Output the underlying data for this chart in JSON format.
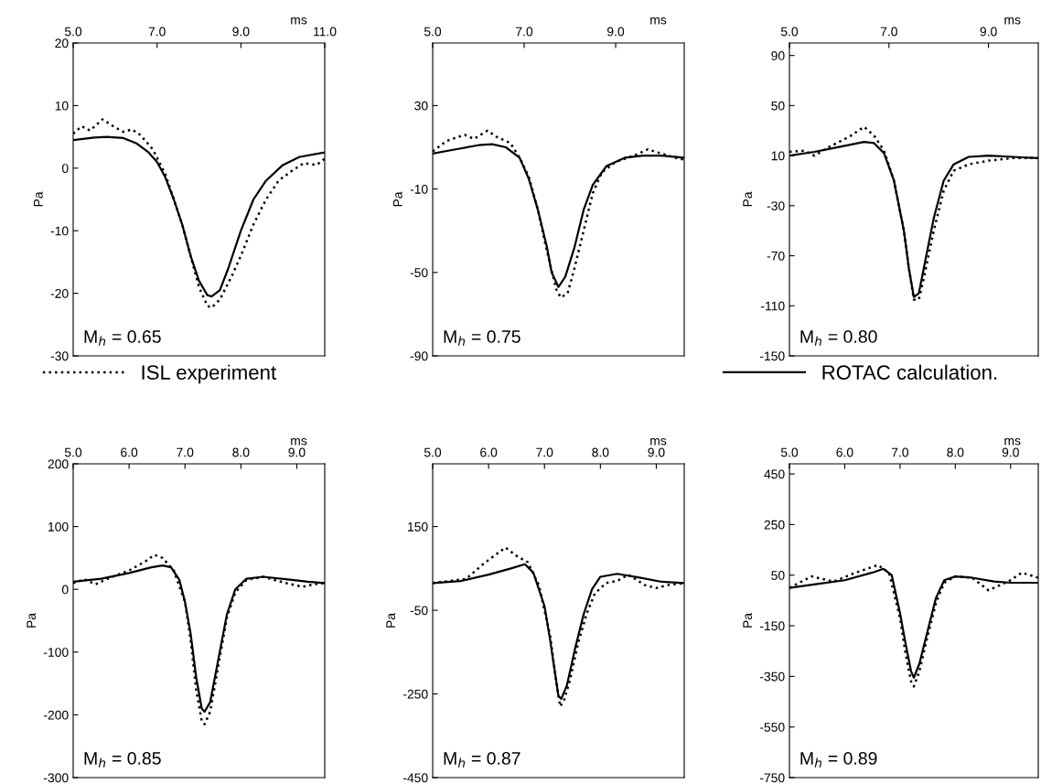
{
  "chart_data": [
    {
      "type": "line",
      "xlabel": "ms",
      "ylabel": "Pa",
      "xlim": [
        5,
        11
      ],
      "xticks": [
        {
          "value": 5,
          "label": "5.0"
        },
        {
          "value": 7,
          "label": "7.0"
        },
        {
          "value": 9,
          "label": "9.0"
        },
        {
          "value": 11,
          "label": "11.0"
        }
      ],
      "ylim": [
        -30,
        20
      ],
      "yticks": [
        -30,
        -20,
        -10,
        0,
        10,
        20
      ],
      "legend": "bottom",
      "annotations": [
        "M$_{h}$ = 0.65"
      ],
      "series": [
        {
          "name": "ISL experiment",
          "color": "#000000",
          "line_style": "dotted",
          "x": [
            5.0,
            5.2,
            5.4,
            5.7,
            6.0,
            6.2,
            6.4,
            6.6,
            6.9,
            7.2,
            7.4,
            7.6,
            7.8,
            8.0,
            8.2,
            8.3,
            8.5,
            8.8,
            9.0,
            9.3,
            9.6,
            9.9,
            10.2,
            10.5,
            10.8,
            11.0
          ],
          "values": [
            5.5,
            6.7,
            6,
            7.8,
            6.5,
            5.8,
            6.2,
            5.3,
            3,
            -1,
            -5,
            -9,
            -14,
            -19,
            -22,
            -22.3,
            -21,
            -17,
            -14,
            -9,
            -5,
            -2,
            -0.5,
            0.8,
            0.5,
            1.5
          ]
        },
        {
          "name": "ROTAC calculation.",
          "color": "#000000",
          "line_style": "solid",
          "x": [
            5.0,
            5.5,
            5.8,
            6.2,
            6.5,
            6.8,
            7.0,
            7.2,
            7.4,
            7.6,
            7.8,
            8.0,
            8.2,
            8.3,
            8.5,
            8.7,
            9.0,
            9.3,
            9.6,
            10.0,
            10.4,
            11.0
          ],
          "values": [
            4.5,
            4.9,
            5,
            4.8,
            4,
            2.5,
            1,
            -1.5,
            -5,
            -9,
            -14,
            -18,
            -20.3,
            -20.5,
            -19.5,
            -16,
            -10,
            -5,
            -2,
            0.5,
            1.8,
            2.5
          ]
        }
      ]
    },
    {
      "type": "line",
      "xlabel": "ms",
      "ylabel": "Pa",
      "xlim": [
        5,
        10.5
      ],
      "xticks": [
        {
          "value": 5,
          "label": "5.0"
        },
        {
          "value": 7,
          "label": "7.0"
        },
        {
          "value": 9,
          "label": "9.0"
        }
      ],
      "ylim": [
        -90,
        60
      ],
      "yticks": [
        -90,
        -50,
        -10,
        30
      ],
      "annotations": [
        "M$_{h}$ = 0.75"
      ],
      "series": [
        {
          "name": "ISL experiment",
          "color": "#000000",
          "line_style": "dotted",
          "x": [
            5.0,
            5.3,
            5.7,
            5.9,
            6.2,
            6.4,
            6.7,
            6.9,
            7.1,
            7.3,
            7.5,
            7.7,
            7.8,
            7.95,
            8.1,
            8.3,
            8.5,
            8.7,
            9.0,
            9.4,
            9.7,
            10.0,
            10.3,
            10.5
          ],
          "values": [
            8,
            13,
            16,
            14,
            18,
            15,
            12,
            5,
            -4,
            -20,
            -40,
            -58,
            -62,
            -60,
            -48,
            -30,
            -12,
            -2,
            3,
            6,
            9,
            7,
            5,
            4
          ]
        },
        {
          "name": "ROTAC calculation.",
          "color": "#000000",
          "line_style": "solid",
          "x": [
            5.0,
            5.5,
            6.0,
            6.3,
            6.6,
            6.9,
            7.1,
            7.3,
            7.5,
            7.6,
            7.75,
            7.9,
            8.1,
            8.3,
            8.5,
            8.8,
            9.2,
            9.6,
            10.0,
            10.5
          ],
          "values": [
            7,
            9,
            11,
            11.5,
            10,
            5,
            -5,
            -20,
            -38,
            -50,
            -57,
            -52,
            -38,
            -20,
            -8,
            1,
            5,
            6,
            6,
            5
          ]
        }
      ]
    },
    {
      "type": "line",
      "xlabel": "ms",
      "ylabel": "Pa",
      "xlim": [
        5,
        10
      ],
      "xticks": [
        {
          "value": 5,
          "label": "5.0"
        },
        {
          "value": 7,
          "label": "7.0"
        },
        {
          "value": 9,
          "label": "9.0"
        }
      ],
      "ylim": [
        -150,
        100
      ],
      "yticks": [
        -150,
        -110,
        -70,
        -30,
        10,
        50,
        90
      ],
      "annotations": [
        "M$_{h}$ = 0.80"
      ],
      "series": [
        {
          "name": "ISL experiment",
          "color": "#000000",
          "line_style": "dotted",
          "x": [
            5.0,
            5.3,
            5.5,
            5.8,
            6.2,
            6.5,
            6.7,
            6.9,
            7.1,
            7.3,
            7.4,
            7.5,
            7.6,
            7.7,
            7.9,
            8.1,
            8.3,
            8.6,
            9.0,
            9.5,
            10.0
          ],
          "values": [
            13,
            14,
            10,
            17,
            25,
            33,
            26,
            14,
            -10,
            -50,
            -80,
            -105,
            -105,
            -88,
            -50,
            -18,
            -2,
            3,
            6,
            8,
            8
          ]
        },
        {
          "name": "ROTAC calculation.",
          "color": "#000000",
          "line_style": "solid",
          "x": [
            5.0,
            5.5,
            6.0,
            6.5,
            6.7,
            6.9,
            7.1,
            7.3,
            7.4,
            7.5,
            7.6,
            7.7,
            7.9,
            8.1,
            8.3,
            8.6,
            9.0,
            9.5,
            10.0
          ],
          "values": [
            10,
            13,
            17,
            21,
            20,
            12,
            -10,
            -50,
            -80,
            -103,
            -100,
            -80,
            -40,
            -10,
            3,
            9,
            10,
            9,
            8
          ]
        }
      ]
    },
    {
      "type": "line",
      "xlabel": "ms",
      "ylabel": "Pa",
      "xlim": [
        5,
        9.5
      ],
      "xticks": [
        {
          "value": 5,
          "label": "5.0"
        },
        {
          "value": 6,
          "label": "6.0"
        },
        {
          "value": 7,
          "label": "7.0"
        },
        {
          "value": 8,
          "label": "8.0"
        },
        {
          "value": 9,
          "label": "9.0"
        }
      ],
      "ylim": [
        -300,
        200
      ],
      "yticks": [
        -300,
        -200,
        -100,
        0,
        100,
        200
      ],
      "annotations": [
        "M$_{h}$ = 0.85"
      ],
      "series": [
        {
          "name": "ISL experiment",
          "color": "#000000",
          "line_style": "dotted",
          "x": [
            5.0,
            5.2,
            5.4,
            5.7,
            6.0,
            6.3,
            6.45,
            6.6,
            6.8,
            7.0,
            7.1,
            7.2,
            7.3,
            7.35,
            7.45,
            7.6,
            7.75,
            7.9,
            8.1,
            8.4,
            8.8,
            9.1,
            9.3,
            9.5
          ],
          "values": [
            10,
            16,
            8,
            20,
            30,
            45,
            55,
            50,
            30,
            -20,
            -80,
            -160,
            -210,
            -215,
            -195,
            -120,
            -45,
            -5,
            15,
            20,
            10,
            4,
            8,
            10
          ]
        },
        {
          "name": "ROTAC calculation.",
          "color": "#000000",
          "line_style": "solid",
          "x": [
            5.0,
            5.5,
            6.0,
            6.4,
            6.6,
            6.75,
            6.9,
            7.0,
            7.1,
            7.2,
            7.3,
            7.35,
            7.45,
            7.6,
            7.75,
            7.9,
            8.1,
            8.4,
            8.8,
            9.2,
            9.5
          ],
          "values": [
            12,
            17,
            26,
            35,
            38,
            35,
            15,
            -20,
            -70,
            -140,
            -190,
            -195,
            -180,
            -110,
            -40,
            0,
            17,
            20,
            16,
            12,
            10
          ]
        }
      ]
    },
    {
      "type": "line",
      "xlabel": "ms",
      "ylabel": "Pa",
      "xlim": [
        5,
        9.5
      ],
      "xticks": [
        {
          "value": 5,
          "label": "5.0"
        },
        {
          "value": 6,
          "label": "6.0"
        },
        {
          "value": 7,
          "label": "7.0"
        },
        {
          "value": 8,
          "label": "8.0"
        },
        {
          "value": 9,
          "label": "9.0"
        }
      ],
      "ylim": [
        -450,
        300
      ],
      "yticks": [
        -450,
        -250,
        -50,
        150
      ],
      "annotations": [
        "M$_{h}$ = 0.87"
      ],
      "series": [
        {
          "name": "ISL experiment",
          "color": "#000000",
          "line_style": "dotted",
          "x": [
            5.0,
            5.6,
            5.9,
            6.3,
            6.5,
            6.7,
            6.9,
            7.1,
            7.2,
            7.28,
            7.35,
            7.45,
            7.6,
            7.75,
            7.9,
            8.1,
            8.3,
            8.5,
            8.8,
            9.0,
            9.2,
            9.5
          ],
          "values": [
            15,
            25,
            60,
            100,
            80,
            65,
            10,
            -110,
            -210,
            -280,
            -265,
            -220,
            -130,
            -60,
            -10,
            15,
            20,
            35,
            10,
            3,
            10,
            15
          ]
        },
        {
          "name": "ROTAC calculation.",
          "color": "#000000",
          "line_style": "solid",
          "x": [
            5.0,
            5.5,
            6.0,
            6.4,
            6.65,
            6.8,
            7.0,
            7.1,
            7.2,
            7.25,
            7.3,
            7.4,
            7.55,
            7.7,
            7.85,
            8.0,
            8.3,
            8.7,
            9.1,
            9.5
          ],
          "values": [
            15,
            20,
            35,
            50,
            60,
            40,
            -40,
            -120,
            -210,
            -255,
            -262,
            -230,
            -140,
            -60,
            0,
            30,
            37,
            28,
            18,
            15
          ]
        }
      ]
    },
    {
      "type": "line",
      "xlabel": "ms",
      "ylabel": "Pa",
      "xlim": [
        5,
        9.5
      ],
      "xticks": [
        {
          "value": 5,
          "label": "5.0"
        },
        {
          "value": 6,
          "label": "6.0"
        },
        {
          "value": 7,
          "label": "7.0"
        },
        {
          "value": 8,
          "label": "8.0"
        },
        {
          "value": 9,
          "label": "9.0"
        }
      ],
      "ylim": [
        -750,
        490
      ],
      "yticks": [
        -750,
        -550,
        -350,
        -150,
        50,
        250,
        450
      ],
      "annotations": [
        "M$_{h}$ = 0.89"
      ],
      "series": [
        {
          "name": "ISL experiment",
          "color": "#000000",
          "line_style": "dotted",
          "x": [
            5.0,
            5.4,
            5.8,
            6.2,
            6.6,
            6.8,
            7.0,
            7.1,
            7.2,
            7.25,
            7.35,
            7.5,
            7.65,
            7.8,
            8.0,
            8.3,
            8.6,
            8.8,
            9.0,
            9.2,
            9.5
          ],
          "values": [
            0,
            45,
            25,
            60,
            90,
            60,
            -120,
            -260,
            -370,
            -390,
            -330,
            -190,
            -60,
            20,
            45,
            40,
            -10,
            10,
            30,
            60,
            40
          ]
        },
        {
          "name": "ROTAC calculation.",
          "color": "#000000",
          "line_style": "solid",
          "x": [
            5.0,
            5.5,
            6.0,
            6.5,
            6.7,
            6.85,
            7.0,
            7.1,
            7.2,
            7.25,
            7.35,
            7.5,
            7.65,
            7.8,
            8.0,
            8.3,
            8.7,
            9.0,
            9.5
          ],
          "values": [
            0,
            15,
            30,
            60,
            75,
            50,
            -100,
            -220,
            -330,
            -355,
            -300,
            -170,
            -40,
            30,
            45,
            40,
            25,
            20,
            20
          ]
        }
      ]
    }
  ]
}
